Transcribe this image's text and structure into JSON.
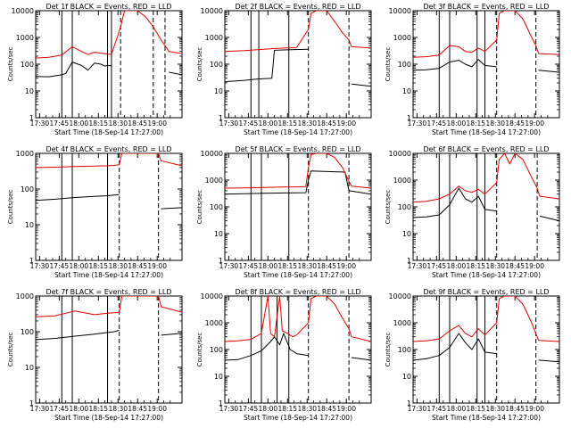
{
  "colors": {
    "events": "#000000",
    "lld": "#e00000",
    "axis": "#000000",
    "background": "#ffffff"
  },
  "shared": {
    "xlabel": "Start Time (18-Sep-14 17:27:00)",
    "ylabel": "Counts/sec",
    "xticks": [
      "17:30",
      "17:45",
      "18:00",
      "18:15",
      "18:30",
      "18:45",
      "19:00"
    ],
    "yticks": [
      "1",
      "10",
      "100",
      "1000",
      "10000"
    ]
  },
  "chart_data": [
    {
      "type": "line",
      "title": "Det 1f BLACK = Events, RED = LLD",
      "ylim": [
        1,
        10000
      ],
      "y_scale": "log",
      "x_unit": "minutes after 17:27:00",
      "solid_markers": [
        20,
        28,
        55,
        58
      ],
      "dashed_markers": [
        65,
        90,
        99
      ],
      "series": [
        {
          "name": "Events",
          "color": "#000000",
          "x": [
            0,
            10,
            20,
            23,
            28,
            35,
            40,
            45,
            50,
            53,
            55,
            58,
            65,
            66,
            90,
            92,
            99,
            102,
            112
          ],
          "y": [
            35,
            34,
            40,
            45,
            120,
            90,
            60,
            110,
            100,
            85,
            90,
            88,
            null,
            null,
            null,
            null,
            null,
            50,
            40
          ]
        },
        {
          "name": "LLD",
          "color": "#e00000",
          "x": [
            0,
            10,
            20,
            28,
            35,
            40,
            45,
            50,
            55,
            58,
            65,
            68,
            72,
            78,
            84,
            90,
            96,
            102,
            112
          ],
          "y": [
            170,
            180,
            220,
            450,
            300,
            230,
            280,
            260,
            240,
            230,
            2500,
            10000,
            12000,
            10000,
            6000,
            2500,
            800,
            300,
            250
          ]
        }
      ]
    },
    {
      "type": "line",
      "title": "Det 2f BLACK = Events, RED = LLD",
      "ylim": [
        1,
        10000
      ],
      "y_scale": "log",
      "x_unit": "minutes after 17:27:00",
      "solid_markers": [
        20,
        26,
        49
      ],
      "dashed_markers": [
        64,
        95
      ],
      "series": [
        {
          "name": "Events",
          "color": "#000000",
          "x": [
            0,
            15,
            25,
            36,
            38,
            50,
            64,
            66,
            95,
            97,
            112
          ],
          "y": [
            22,
            25,
            28,
            30,
            330,
            350,
            360,
            null,
            null,
            18,
            15
          ]
        },
        {
          "name": "LLD",
          "color": "#e00000",
          "x": [
            0,
            15,
            25,
            36,
            45,
            55,
            64,
            66,
            70,
            78,
            84,
            90,
            95,
            97,
            112
          ],
          "y": [
            300,
            320,
            350,
            380,
            400,
            420,
            2000,
            8000,
            12000,
            10000,
            4000,
            1500,
            800,
            450,
            400
          ]
        }
      ]
    },
    {
      "type": "line",
      "title": "Det 3f BLACK = Events, RED = LLD",
      "ylim": [
        1,
        10000
      ],
      "y_scale": "log",
      "x_unit": "minutes after 17:27:00",
      "solid_markers": [
        20,
        28,
        49,
        55
      ],
      "dashed_markers": [
        64,
        94
      ],
      "series": [
        {
          "name": "Events",
          "color": "#000000",
          "x": [
            0,
            10,
            20,
            28,
            35,
            40,
            45,
            50,
            55,
            64,
            66,
            94,
            96,
            112
          ],
          "y": [
            60,
            62,
            70,
            120,
            140,
            100,
            80,
            150,
            90,
            80,
            null,
            null,
            60,
            50
          ]
        },
        {
          "name": "LLD",
          "color": "#e00000",
          "x": [
            0,
            10,
            20,
            28,
            35,
            40,
            45,
            50,
            55,
            64,
            66,
            70,
            78,
            84,
            90,
            94,
            96,
            112
          ],
          "y": [
            180,
            190,
            220,
            500,
            450,
            300,
            280,
            400,
            300,
            800,
            8000,
            12000,
            10000,
            5000,
            1200,
            500,
            250,
            230
          ]
        }
      ]
    },
    {
      "type": "line",
      "title": "Det 4f BLACK = Events, RED = LLD",
      "ylim": [
        1,
        1000
      ],
      "y_scale": "log",
      "x_unit": "minutes after 17:27:00",
      "solid_markers": [
        20,
        28,
        55
      ],
      "dashed_markers": [
        64,
        94
      ],
      "series": [
        {
          "name": "Events",
          "color": "#000000",
          "x": [
            0,
            15,
            30,
            45,
            55,
            60,
            64,
            66,
            94,
            96,
            112
          ],
          "y": [
            48,
            52,
            58,
            62,
            65,
            68,
            70,
            null,
            null,
            28,
            30
          ]
        },
        {
          "name": "LLD",
          "color": "#e00000",
          "x": [
            0,
            15,
            30,
            45,
            55,
            60,
            64,
            66,
            94,
            96,
            112
          ],
          "y": [
            400,
            410,
            430,
            440,
            450,
            460,
            480,
            1100,
            1100,
            620,
            450
          ]
        }
      ]
    },
    {
      "type": "line",
      "title": "Det 5f BLACK = Events, RED = LLD",
      "ylim": [
        1,
        10000
      ],
      "y_scale": "log",
      "x_unit": "minutes after 17:27:00",
      "solid_markers": [
        20,
        28,
        49
      ],
      "dashed_markers": [
        64,
        95
      ],
      "series": [
        {
          "name": "Events",
          "color": "#000000",
          "x": [
            0,
            15,
            30,
            45,
            55,
            62,
            64,
            66,
            92,
            95,
            112
          ],
          "y": [
            300,
            310,
            320,
            330,
            335,
            340,
            1000,
            2200,
            2000,
            400,
            300
          ]
        },
        {
          "name": "LLD",
          "color": "#e00000",
          "x": [
            0,
            15,
            30,
            45,
            55,
            62,
            64,
            66,
            70,
            78,
            84,
            90,
            95,
            97,
            112
          ],
          "y": [
            500,
            510,
            530,
            550,
            560,
            570,
            3000,
            9000,
            12000,
            10000,
            7000,
            3000,
            900,
            600,
            500
          ]
        }
      ]
    },
    {
      "type": "line",
      "title": "Det 6f BLACK = Events, RED = LLD",
      "ylim": [
        1,
        10000
      ],
      "y_scale": "log",
      "x_unit": "minutes after 17:27:00",
      "solid_markers": [
        20,
        28,
        49,
        55
      ],
      "dashed_markers": [
        64,
        95
      ],
      "series": [
        {
          "name": "Events",
          "color": "#000000",
          "x": [
            0,
            10,
            20,
            28,
            35,
            40,
            45,
            50,
            55,
            64,
            66,
            95,
            97,
            112
          ],
          "y": [
            40,
            42,
            50,
            120,
            500,
            200,
            150,
            250,
            80,
            70,
            null,
            null,
            45,
            30
          ]
        },
        {
          "name": "LLD",
          "color": "#e00000",
          "x": [
            0,
            10,
            20,
            28,
            35,
            40,
            45,
            50,
            55,
            64,
            66,
            70,
            74,
            78,
            84,
            90,
            95,
            97,
            112
          ],
          "y": [
            150,
            160,
            200,
            300,
            600,
            400,
            350,
            450,
            300,
            800,
            6000,
            12000,
            4000,
            10000,
            6000,
            1500,
            500,
            250,
            200
          ]
        }
      ]
    },
    {
      "type": "line",
      "title": "Det 7f BLACK = Events, RED = LLD",
      "ylim": [
        1,
        1000
      ],
      "y_scale": "log",
      "x_unit": "minutes after 17:27:00",
      "solid_markers": [
        20,
        28,
        55
      ],
      "dashed_markers": [
        64,
        94
      ],
      "series": [
        {
          "name": "Events",
          "color": "#000000",
          "x": [
            0,
            15,
            30,
            45,
            55,
            60,
            64,
            66,
            94,
            96,
            112
          ],
          "y": [
            60,
            65,
            75,
            85,
            95,
            100,
            110,
            null,
            null,
            80,
            90
          ]
        },
        {
          "name": "LLD",
          "color": "#e00000",
          "x": [
            0,
            15,
            30,
            45,
            55,
            60,
            64,
            66,
            94,
            96,
            112
          ],
          "y": [
            260,
            280,
            380,
            300,
            330,
            340,
            350,
            1100,
            1100,
            500,
            350
          ]
        }
      ]
    },
    {
      "type": "line",
      "title": "Det 8f BLACK = Events, RED = LLD",
      "ylim": [
        1,
        10000
      ],
      "y_scale": "log",
      "x_unit": "minutes after 17:27:00",
      "solid_markers": [
        20,
        28,
        40,
        49
      ],
      "dashed_markers": [
        64,
        95
      ],
      "series": [
        {
          "name": "Events",
          "color": "#000000",
          "x": [
            0,
            10,
            20,
            28,
            35,
            38,
            42,
            45,
            50,
            55,
            64,
            66,
            95,
            97,
            112
          ],
          "y": [
            40,
            42,
            60,
            90,
            200,
            300,
            150,
            400,
            100,
            70,
            60,
            null,
            null,
            50,
            40
          ]
        },
        {
          "name": "LLD",
          "color": "#e00000",
          "x": [
            0,
            10,
            20,
            28,
            33,
            35,
            38,
            42,
            44,
            48,
            52,
            55,
            64,
            66,
            70,
            78,
            84,
            90,
            95,
            97,
            112
          ],
          "y": [
            200,
            210,
            240,
            400,
            15000,
            400,
            300,
            15000,
            500,
            400,
            300,
            350,
            1000,
            8000,
            12000,
            10000,
            5000,
            1500,
            600,
            300,
            200
          ]
        }
      ]
    },
    {
      "type": "line",
      "title": "Det 9f BLACK = Events, RED = LLD",
      "ylim": [
        1,
        10000
      ],
      "y_scale": "log",
      "x_unit": "minutes after 17:27:00",
      "solid_markers": [
        20,
        28,
        49,
        55
      ],
      "dashed_markers": [
        64,
        94
      ],
      "series": [
        {
          "name": "Events",
          "color": "#000000",
          "x": [
            0,
            10,
            20,
            28,
            35,
            40,
            45,
            50,
            55,
            64,
            66,
            94,
            96,
            112
          ],
          "y": [
            40,
            45,
            60,
            120,
            400,
            180,
            100,
            250,
            80,
            70,
            null,
            null,
            40,
            35
          ]
        },
        {
          "name": "LLD",
          "color": "#e00000",
          "x": [
            0,
            10,
            20,
            28,
            35,
            40,
            45,
            50,
            55,
            64,
            66,
            70,
            78,
            84,
            90,
            94,
            96,
            112
          ],
          "y": [
            200,
            210,
            250,
            500,
            800,
            400,
            300,
            600,
            350,
            1000,
            8000,
            12000,
            10000,
            5000,
            1200,
            400,
            220,
            200
          ]
        }
      ]
    }
  ]
}
